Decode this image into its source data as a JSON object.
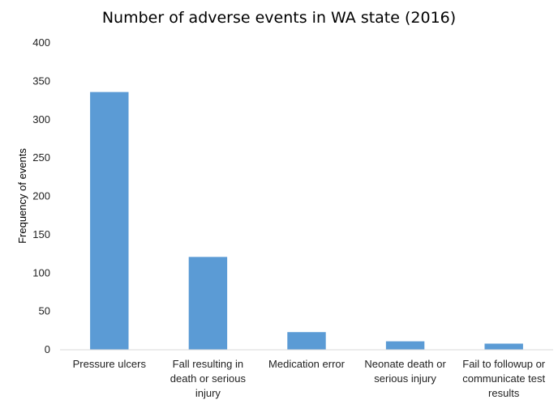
{
  "chart_data": {
    "type": "bar",
    "title": "Number of adverse events in WA state (2016)",
    "xlabel": "",
    "ylabel": "Frequency of events",
    "ylim": [
      0,
      400
    ],
    "yticks": [
      0,
      50,
      100,
      150,
      200,
      250,
      300,
      350,
      400
    ],
    "grid": false,
    "bar_color": "#5b9bd5",
    "categories": [
      [
        "Pressure ulcers"
      ],
      [
        "Fall resulting in",
        "death or serious",
        "injury"
      ],
      [
        "Medication error"
      ],
      [
        "Neonate death or",
        "serious injury"
      ],
      [
        "Fail to followup or",
        "communicate test",
        "results"
      ]
    ],
    "values": [
      336,
      121,
      23,
      11,
      8
    ]
  }
}
